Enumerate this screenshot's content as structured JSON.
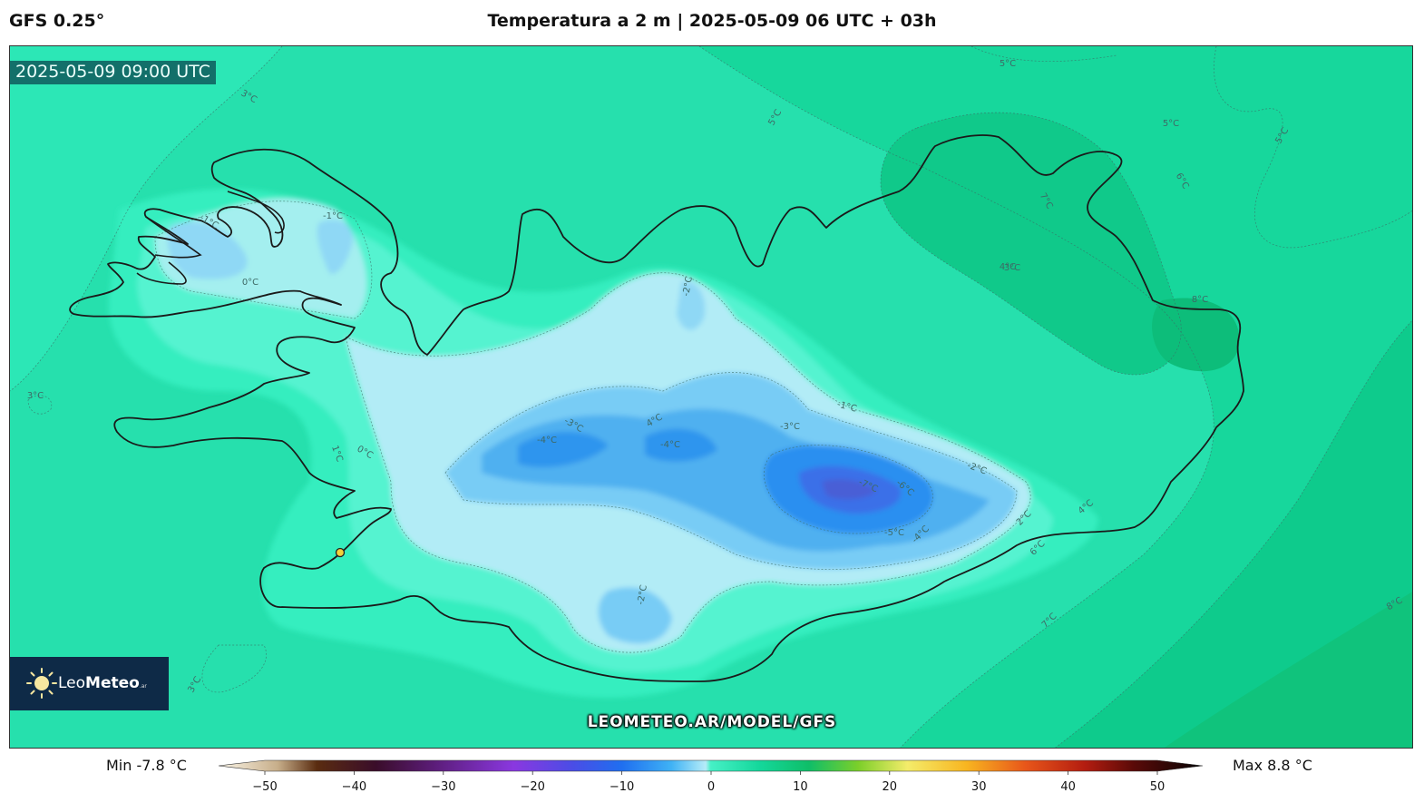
{
  "header": {
    "model": "GFS 0.25°",
    "title": "Temperatura a 2 m | 2025-05-09 06 UTC + 03h"
  },
  "map": {
    "valid_time": "2025-05-09 09:00 UTC",
    "watermark": "LEOMETEO.AR/MODEL/GFS",
    "logo": {
      "text_light": "Leo",
      "text_bold": "Meteo",
      "suffix": ".ar"
    },
    "contour_labels": [
      "5°C",
      "3°C",
      "5°C",
      "5°C",
      "5°C",
      "6°C",
      "7°C",
      "8°C",
      "4°C",
      "-1°C",
      "-1°C",
      "0°C",
      "-2°C",
      "3°C",
      "-3°C",
      "4°C",
      "-4°C",
      "-4°C",
      "-3°C",
      "-1°C",
      "-7°C",
      "-6°C",
      "-5°C",
      "-4°C",
      "-2°C",
      "1°C",
      "0°C",
      "2°C",
      "4°C",
      "6°C",
      "7°C",
      "8°C",
      "3°C",
      "-2°C",
      "3°C"
    ],
    "colors": {
      "sea": "#26e0ad",
      "land_warm": "#11c98d",
      "cold_core": "#3d7bef",
      "coast": "#1a1a1a"
    }
  },
  "legend": {
    "min_label": "Min -7.8 °C",
    "max_label": "Max 8.8 °C",
    "ticks": [
      "−50",
      "−40",
      "−30",
      "−20",
      "−10",
      "0",
      "10",
      "20",
      "30",
      "40",
      "50"
    ],
    "range": [
      -50,
      50
    ],
    "unit": "°C"
  }
}
